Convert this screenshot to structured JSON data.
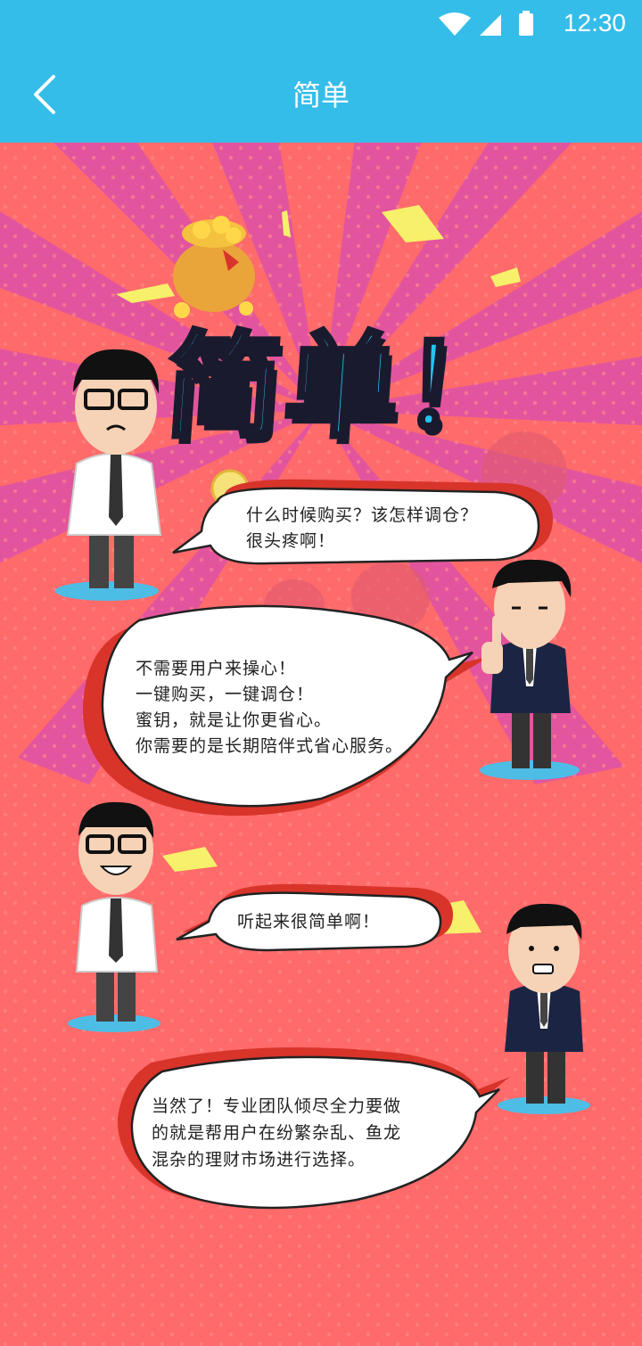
{
  "status_bar": {
    "time": "12:30"
  },
  "app_bar": {
    "title": "简单"
  },
  "poster": {
    "headline": "简单！",
    "bubbles": [
      {
        "lines": [
          "什么时候购买？该怎样调仓？",
          "很头疼啊！"
        ]
      },
      {
        "lines": [
          "不需要用户来操心！",
          "一键购买，一键调仓！",
          "蜜钥，就是让你更省心。",
          "你需要的是长期陪伴式省心服务。"
        ]
      },
      {
        "lines": [
          "听起来很简单啊！"
        ]
      },
      {
        "lines": [
          "当然了！专业团队倾尽全力要做",
          "的就是帮用户在纷繁杂乱、鱼龙",
          "混杂的理财市场进行选择。"
        ]
      }
    ]
  },
  "colors": {
    "header": "#35bde9",
    "background": "#ff6a6a",
    "title_fill": "#22c4f2"
  }
}
